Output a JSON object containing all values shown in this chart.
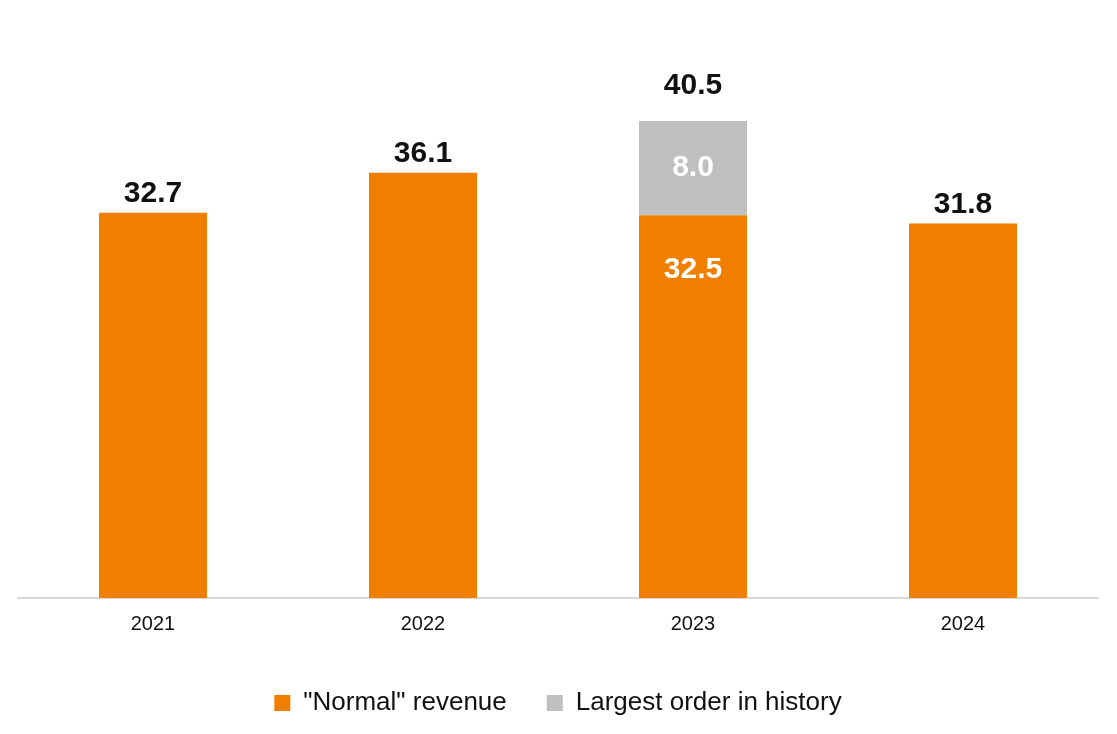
{
  "chart_data": {
    "type": "bar",
    "stacked": true,
    "categories": [
      "2021",
      "2022",
      "2023",
      "2024"
    ],
    "series": [
      {
        "name": "\"Normal\" revenue",
        "color": "#f07f00",
        "values": [
          32.7,
          36.1,
          32.5,
          31.8
        ],
        "value_labels": [
          "32.7",
          "36.1",
          "32.5",
          "31.8"
        ]
      },
      {
        "name": "Largest order in history",
        "color": "#bfbfbf",
        "values": [
          null,
          null,
          8.0,
          null
        ],
        "value_labels": [
          null,
          null,
          "8.0",
          null
        ]
      }
    ],
    "totals": [
      null,
      null,
      "40.5",
      null
    ],
    "legend": "bottom",
    "grid": false
  }
}
